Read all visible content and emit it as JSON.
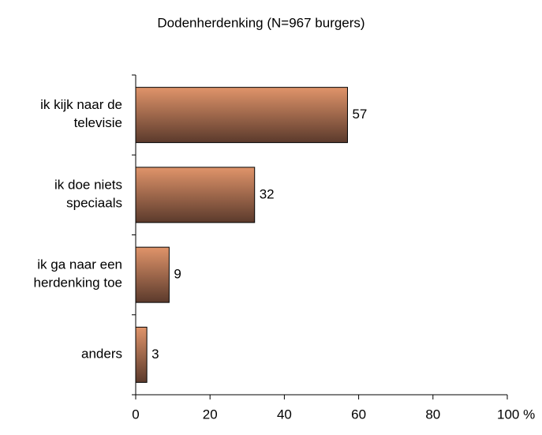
{
  "chart_data": {
    "type": "bar",
    "orientation": "horizontal",
    "title": "Dodenherdenking (N=967 burgers)",
    "categories": [
      "ik kijk naar de\ntelevisie",
      "ik doe niets\nspeciaals",
      "ik ga naar een\nherdenking toe",
      "anders"
    ],
    "values": [
      57,
      32,
      9,
      3
    ],
    "color": "#e0946a",
    "xlim": [
      0,
      100
    ],
    "xticks": [
      0,
      20,
      40,
      60,
      80,
      {
        "value": 100,
        "label": "100 %"
      }
    ]
  }
}
